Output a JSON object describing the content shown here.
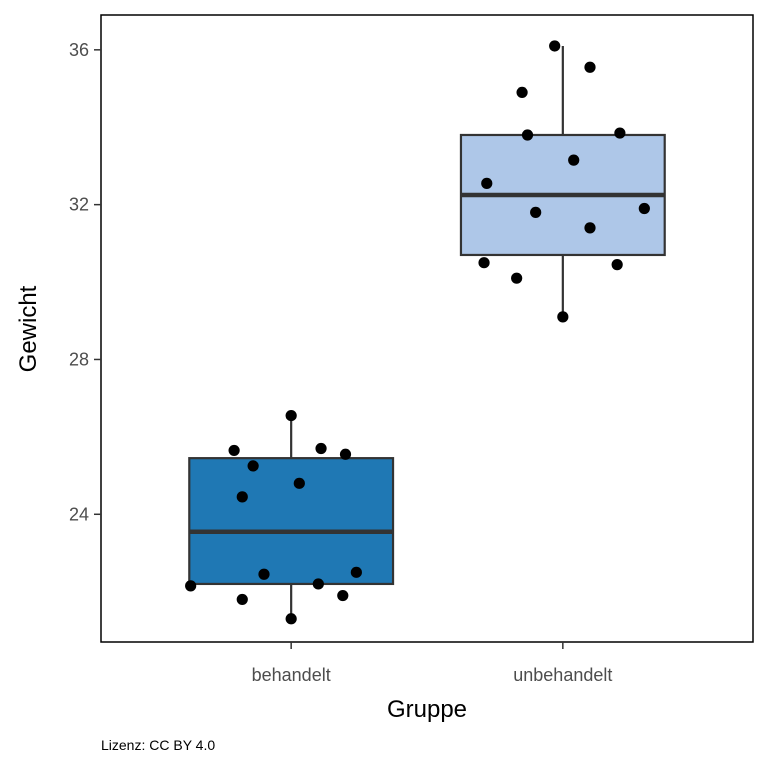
{
  "chart_data": {
    "type": "boxplot",
    "xlabel": "Gruppe",
    "ylabel": "Gewicht",
    "ylim": [
      20.7,
      36.9
    ],
    "yticks": [
      24,
      28,
      32,
      36
    ],
    "categories": [
      "behandelt",
      "unbehandelt"
    ],
    "colors": [
      "#1f78b4",
      "#aec7e8"
    ],
    "boxes": [
      {
        "name": "behandelt",
        "whisker_low": 21.3,
        "q1": 22.2,
        "median": 23.55,
        "q3": 25.45,
        "whisker_high": 26.55,
        "points": [
          {
            "x_jitter": -0.37,
            "y": 22.15
          },
          {
            "x_jitter": -0.21,
            "y": 25.65
          },
          {
            "x_jitter": -0.18,
            "y": 21.8
          },
          {
            "x_jitter": -0.18,
            "y": 24.45
          },
          {
            "x_jitter": -0.14,
            "y": 25.25
          },
          {
            "x_jitter": -0.1,
            "y": 22.45
          },
          {
            "x_jitter": 0.0,
            "y": 26.55
          },
          {
            "x_jitter": 0.0,
            "y": 21.3
          },
          {
            "x_jitter": 0.03,
            "y": 24.8
          },
          {
            "x_jitter": 0.1,
            "y": 22.2
          },
          {
            "x_jitter": 0.11,
            "y": 25.7
          },
          {
            "x_jitter": 0.19,
            "y": 21.9
          },
          {
            "x_jitter": 0.2,
            "y": 25.55
          },
          {
            "x_jitter": 0.24,
            "y": 22.5
          }
        ]
      },
      {
        "name": "unbehandelt",
        "whisker_low": 29.1,
        "q1": 30.7,
        "median": 32.25,
        "q3": 33.8,
        "whisker_high": 36.1,
        "points": [
          {
            "x_jitter": -0.29,
            "y": 30.5
          },
          {
            "x_jitter": -0.28,
            "y": 32.55
          },
          {
            "x_jitter": -0.17,
            "y": 30.1
          },
          {
            "x_jitter": -0.15,
            "y": 34.9
          },
          {
            "x_jitter": -0.13,
            "y": 33.8
          },
          {
            "x_jitter": -0.1,
            "y": 31.8
          },
          {
            "x_jitter": -0.03,
            "y": 36.1
          },
          {
            "x_jitter": 0.0,
            "y": 29.1
          },
          {
            "x_jitter": 0.04,
            "y": 33.15
          },
          {
            "x_jitter": 0.1,
            "y": 31.4
          },
          {
            "x_jitter": 0.1,
            "y": 35.55
          },
          {
            "x_jitter": 0.2,
            "y": 30.45
          },
          {
            "x_jitter": 0.21,
            "y": 33.85
          },
          {
            "x_jitter": 0.3,
            "y": 31.9
          }
        ]
      }
    ]
  },
  "caption": "Lizenz: CC BY 4.0"
}
